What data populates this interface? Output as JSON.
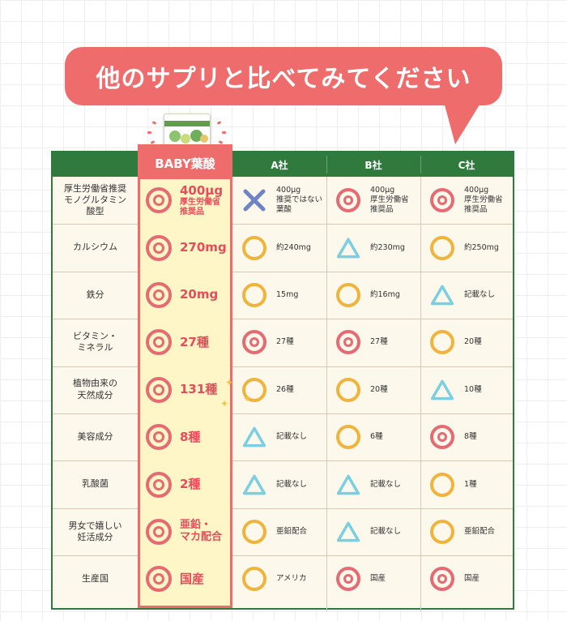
{
  "heading": "他のサプリと比べてみてください",
  "columns": {
    "baby": "BABY葉酸",
    "a": "A社",
    "b": "B社",
    "c": "C社"
  },
  "colors": {
    "accent_red": "#ee6c6c",
    "header_green": "#2f7a3c",
    "highlight_yellow": "#fff6c7",
    "circle_orange": "#f0b43c",
    "triangle_blue": "#7ccfe0",
    "cross_blue": "#7083c4"
  },
  "rows": [
    {
      "label": "厚生労働省推奨\nモノグルタミン\n酸型",
      "baby": {
        "symbol": "double-circle",
        "main": "400μg",
        "sub": "厚生労働省\n推奨品"
      },
      "a": {
        "symbol": "cross",
        "text": "400μg\n推奨ではない\n葉酸"
      },
      "b": {
        "symbol": "double-circle",
        "text": "400μg\n厚生労働省\n推奨品"
      },
      "c": {
        "symbol": "double-circle",
        "text": "400μg\n厚生労働省\n推奨品"
      }
    },
    {
      "label": "カルシウム",
      "baby": {
        "symbol": "double-circle",
        "main": "270mg"
      },
      "a": {
        "symbol": "circle",
        "text": "約240mg"
      },
      "b": {
        "symbol": "triangle",
        "text": "約230mg"
      },
      "c": {
        "symbol": "circle",
        "text": "約250mg"
      }
    },
    {
      "label": "鉄分",
      "baby": {
        "symbol": "double-circle",
        "main": "20mg"
      },
      "a": {
        "symbol": "circle",
        "text": "15mg"
      },
      "b": {
        "symbol": "circle",
        "text": "約16mg"
      },
      "c": {
        "symbol": "triangle",
        "text": "記載なし"
      }
    },
    {
      "label": "ビタミン・\nミネラル",
      "baby": {
        "symbol": "double-circle",
        "main": "27種"
      },
      "a": {
        "symbol": "double-circle",
        "text": "27種"
      },
      "b": {
        "symbol": "double-circle",
        "text": "27種"
      },
      "c": {
        "symbol": "circle",
        "text": "20種"
      }
    },
    {
      "label": "植物由来の\n天然成分",
      "baby": {
        "symbol": "double-circle",
        "main": "131種"
      },
      "a": {
        "symbol": "circle",
        "text": "26種"
      },
      "b": {
        "symbol": "circle",
        "text": "20種"
      },
      "c": {
        "symbol": "triangle",
        "text": "10種"
      }
    },
    {
      "label": "美容成分",
      "baby": {
        "symbol": "double-circle",
        "main": "8種"
      },
      "a": {
        "symbol": "triangle",
        "text": "記載なし"
      },
      "b": {
        "symbol": "circle",
        "text": "6種"
      },
      "c": {
        "symbol": "double-circle",
        "text": "8種"
      }
    },
    {
      "label": "乳酸菌",
      "baby": {
        "symbol": "double-circle",
        "main": "2種"
      },
      "a": {
        "symbol": "triangle",
        "text": "記載なし"
      },
      "b": {
        "symbol": "triangle",
        "text": "記載なし"
      },
      "c": {
        "symbol": "circle",
        "text": "1種"
      }
    },
    {
      "label": "男女で嬉しい\n妊活成分",
      "baby": {
        "symbol": "double-circle",
        "main": "亜鉛・\nマカ配合"
      },
      "a": {
        "symbol": "circle",
        "text": "亜鉛配合"
      },
      "b": {
        "symbol": "triangle",
        "text": "記載なし"
      },
      "c": {
        "symbol": "circle",
        "text": "亜鉛配合"
      }
    },
    {
      "label": "生産国",
      "baby": {
        "symbol": "double-circle",
        "main": "国産"
      },
      "a": {
        "symbol": "circle",
        "text": "アメリカ"
      },
      "b": {
        "symbol": "double-circle",
        "text": "国産"
      },
      "c": {
        "symbol": "double-circle",
        "text": "国産"
      }
    }
  ]
}
